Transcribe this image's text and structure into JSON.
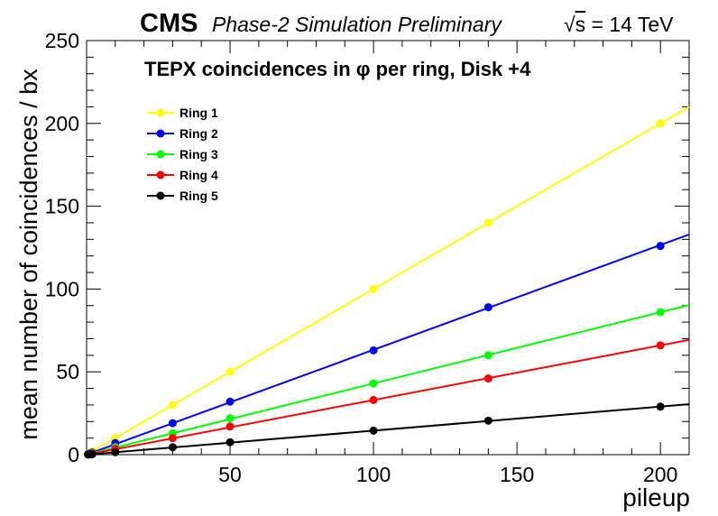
{
  "header": {
    "experiment": "CMS",
    "label": "Phase-2 Simulation Preliminary",
    "energy": "= 14 TeV",
    "energy_symbol": "s"
  },
  "chart_data": {
    "type": "line",
    "title": "TEPX coincidences in φ per ring, Disk +4",
    "xlabel": "pileup",
    "ylabel": "mean number of coincidences / bx",
    "xlim": [
      0,
      210
    ],
    "ylim": [
      0,
      250
    ],
    "xticks": [
      50,
      100,
      150,
      200
    ],
    "yticks": [
      0,
      50,
      100,
      150,
      200,
      250
    ],
    "grid": false,
    "legend_position": "top-left",
    "x": [
      0.5,
      1,
      1.5,
      2,
      10,
      30,
      50,
      100,
      140,
      200
    ],
    "series": [
      {
        "name": "Ring 1",
        "color": "#ffff00",
        "values": [
          0.5,
          1,
          1.5,
          2,
          10,
          30,
          50,
          100,
          140,
          200
        ],
        "fit_slope": 1.0
      },
      {
        "name": "Ring 2",
        "color": "#0000ff",
        "values": [
          0.3,
          0.6,
          1,
          1.3,
          7,
          19,
          32,
          63,
          89,
          126
        ],
        "fit_slope": 0.633
      },
      {
        "name": "Ring 3",
        "color": "#00ff00",
        "values": [
          0.2,
          0.4,
          0.6,
          0.9,
          4.5,
          13,
          22,
          43,
          60,
          86
        ],
        "fit_slope": 0.43
      },
      {
        "name": "Ring 4",
        "color": "#ff0000",
        "values": [
          0.2,
          0.3,
          0.5,
          0.7,
          3.5,
          10,
          17,
          33,
          46,
          66
        ],
        "fit_slope": 0.33
      },
      {
        "name": "Ring 5",
        "color": "#000000",
        "values": [
          0.1,
          0.15,
          0.2,
          0.3,
          1.5,
          4.5,
          7.5,
          14.5,
          20.5,
          29
        ],
        "fit_slope": 0.145
      }
    ]
  }
}
